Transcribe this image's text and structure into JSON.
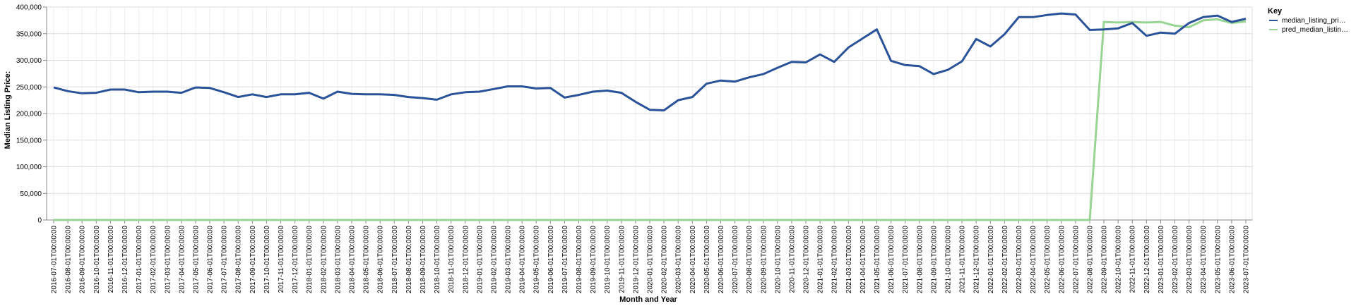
{
  "chart_data": {
    "type": "line",
    "title": "",
    "xlabel": "Month and Year",
    "ylabel": "Median Listing Price:",
    "ylim": [
      0,
      400000
    ],
    "yticks": [
      0,
      50000,
      100000,
      150000,
      200000,
      250000,
      300000,
      350000,
      400000
    ],
    "ytick_labels": [
      "0",
      "50,000",
      "100,000",
      "150,000",
      "200,000",
      "250,000",
      "300,000",
      "350,000",
      "400,000"
    ],
    "grid": true,
    "legend": {
      "title": "Key",
      "placement": "right"
    },
    "x": [
      "2016-07-01T00:00:00",
      "2016-08-01T00:00:00",
      "2016-09-01T00:00:00",
      "2016-10-01T00:00:00",
      "2016-11-01T00:00:00",
      "2016-12-01T00:00:00",
      "2017-01-01T00:00:00",
      "2017-02-01T00:00:00",
      "2017-03-01T00:00:00",
      "2017-04-01T00:00:00",
      "2017-05-01T00:00:00",
      "2017-06-01T00:00:00",
      "2017-07-01T00:00:00",
      "2017-08-01T00:00:00",
      "2017-09-01T00:00:00",
      "2017-10-01T00:00:00",
      "2017-11-01T00:00:00",
      "2017-12-01T00:00:00",
      "2018-01-01T00:00:00",
      "2018-02-01T00:00:00",
      "2018-03-01T00:00:00",
      "2018-04-01T00:00:00",
      "2018-05-01T00:00:00",
      "2018-06-01T00:00:00",
      "2018-07-01T00:00:00",
      "2018-08-01T00:00:00",
      "2018-09-01T00:00:00",
      "2018-10-01T00:00:00",
      "2018-11-01T00:00:00",
      "2018-12-01T00:00:00",
      "2019-01-01T00:00:00",
      "2019-02-01T00:00:00",
      "2019-03-01T00:00:00",
      "2019-04-01T00:00:00",
      "2019-05-01T00:00:00",
      "2019-06-01T00:00:00",
      "2019-07-01T00:00:00",
      "2019-08-01T00:00:00",
      "2019-09-01T00:00:00",
      "2019-10-01T00:00:00",
      "2019-11-01T00:00:00",
      "2019-12-01T00:00:00",
      "2020-01-01T00:00:00",
      "2020-02-01T00:00:00",
      "2020-03-01T00:00:00",
      "2020-04-01T00:00:00",
      "2020-05-01T00:00:00",
      "2020-06-01T00:00:00",
      "2020-07-01T00:00:00",
      "2020-08-01T00:00:00",
      "2020-09-01T00:00:00",
      "2020-10-01T00:00:00",
      "2020-11-01T00:00:00",
      "2020-12-01T00:00:00",
      "2021-01-01T00:00:00",
      "2021-02-01T00:00:00",
      "2021-03-01T00:00:00",
      "2021-04-01T00:00:00",
      "2021-05-01T00:00:00",
      "2021-06-01T00:00:00",
      "2021-07-01T00:00:00",
      "2021-08-01T00:00:00",
      "2021-09-01T00:00:00",
      "2021-10-01T00:00:00",
      "2021-11-01T00:00:00",
      "2021-12-01T00:00:00",
      "2022-01-01T00:00:00",
      "2022-02-01T00:00:00",
      "2022-03-01T00:00:00",
      "2022-04-01T00:00:00",
      "2022-05-01T00:00:00",
      "2022-06-01T00:00:00",
      "2022-07-01T00:00:00",
      "2022-08-01T00:00:00",
      "2022-09-01T00:00:00",
      "2022-10-01T00:00:00",
      "2022-11-01T00:00:00",
      "2022-12-01T00:00:00",
      "2023-01-01T00:00:00",
      "2023-02-01T00:00:00",
      "2023-03-01T00:00:00",
      "2023-04-01T00:00:00",
      "2023-05-01T00:00:00",
      "2023-06-01T00:00:00",
      "2023-07-01T00:00:00"
    ],
    "series": [
      {
        "name": "median_listing_pri…",
        "color": "#2a5298",
        "values": [
          249000,
          242000,
          238000,
          239000,
          245000,
          245000,
          240000,
          241000,
          241000,
          239000,
          249000,
          248000,
          240000,
          231000,
          236000,
          231000,
          236000,
          236000,
          239000,
          228000,
          241000,
          237000,
          236000,
          236000,
          235000,
          231000,
          229000,
          226000,
          236000,
          240000,
          241000,
          246000,
          251000,
          251000,
          247000,
          248000,
          230000,
          235000,
          241000,
          243000,
          239000,
          222000,
          207000,
          206000,
          225000,
          231000,
          256000,
          262000,
          260000,
          268000,
          274000,
          286000,
          297000,
          296000,
          311000,
          297000,
          324000,
          341000,
          358000,
          299000,
          291000,
          289000,
          274000,
          282000,
          298000,
          340000,
          326000,
          349000,
          381000,
          381000,
          385000,
          388000,
          386000,
          357000,
          358000,
          360000,
          370000,
          346000,
          352000,
          350000,
          370000,
          381000,
          384000,
          372000,
          378000
        ]
      },
      {
        "name": "pred_median_listin…",
        "color": "#98d593",
        "values": [
          0,
          0,
          0,
          0,
          0,
          0,
          0,
          0,
          0,
          0,
          0,
          0,
          0,
          0,
          0,
          0,
          0,
          0,
          0,
          0,
          0,
          0,
          0,
          0,
          0,
          0,
          0,
          0,
          0,
          0,
          0,
          0,
          0,
          0,
          0,
          0,
          0,
          0,
          0,
          0,
          0,
          0,
          0,
          0,
          0,
          0,
          0,
          0,
          0,
          0,
          0,
          0,
          0,
          0,
          0,
          0,
          0,
          0,
          0,
          0,
          0,
          0,
          0,
          0,
          0,
          0,
          0,
          0,
          0,
          0,
          0,
          0,
          0,
          0,
          372000,
          371000,
          372000,
          371000,
          372000,
          365000,
          362000,
          375000,
          377000,
          370000,
          373000
        ]
      }
    ]
  }
}
